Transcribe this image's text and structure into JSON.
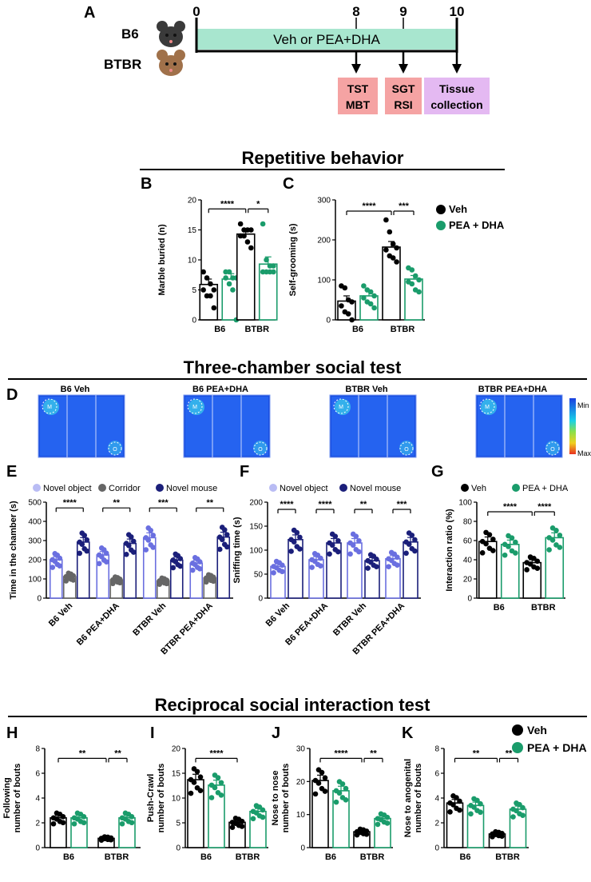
{
  "colors": {
    "veh": "#000000",
    "pea": "#1a9c6b",
    "object": "#6a6fe0",
    "object_light": "#b9bcf4",
    "corridor": "#666666",
    "mouse": "#1b1f7a",
    "timeline": "#a8e6cf",
    "box_red": "#f5a3a3",
    "box_purple": "#e4b9f2"
  },
  "panelA": {
    "letter": "A",
    "groups": [
      "B6",
      "BTBR"
    ],
    "ticks": [
      "0",
      "8",
      "9",
      "10"
    ],
    "bar_label": "Veh or PEA+DHA",
    "boxes": [
      {
        "l1": "TST",
        "l2": "MBT"
      },
      {
        "l1": "SGT",
        "l2": "RSI"
      },
      {
        "l1": "Tissue",
        "l2": "collection"
      }
    ]
  },
  "sections": {
    "repetitive": "Repetitive behavior",
    "three_chamber": "Three-chamber social test",
    "reciprocal": "Reciprocal social interaction test"
  },
  "legend_veh": "Veh",
  "legend_pea": "PEA + DHA",
  "panelD": {
    "letter": "D",
    "titles": [
      "B6 Veh",
      "B6 PEA+DHA",
      "BTBR Veh",
      "BTBR PEA+DHA"
    ],
    "marker_m": "M",
    "marker_o": "O",
    "scale_min": "Min",
    "scale_max": "Max"
  },
  "chart_data": [
    {
      "id": "B",
      "type": "bar",
      "title": "",
      "ylabel": "Marble buried (n)",
      "categories": [
        "B6",
        "BTBR"
      ],
      "ylim": [
        0,
        20
      ],
      "yticks": [
        0,
        5,
        10,
        15,
        20
      ],
      "series": [
        {
          "name": "Veh",
          "values": [
            5.9,
            14.3
          ],
          "sem": [
            0.9,
            0.7
          ]
        },
        {
          "name": "PEA + DHA",
          "values": [
            6.8,
            9.3
          ],
          "sem": [
            0.9,
            1.2
          ]
        }
      ],
      "points": [
        [
          [
            8,
            7,
            6,
            5,
            5,
            4,
            4,
            2
          ],
          [
            16,
            15,
            15,
            15,
            14,
            14,
            13,
            12
          ]
        ],
        [
          [
            8,
            8,
            7,
            7,
            7,
            6,
            5,
            0
          ],
          [
            16,
            10,
            9,
            9,
            8,
            8,
            8,
            8
          ]
        ]
      ],
      "sig": [
        {
          "text": "****",
          "from": [
            0,
            0
          ],
          "to": [
            1,
            0
          ],
          "y": 18
        },
        {
          "text": "*",
          "from": [
            1,
            0
          ],
          "to": [
            1,
            1
          ],
          "y": 18
        }
      ]
    },
    {
      "id": "C",
      "type": "bar",
      "title": "",
      "ylabel": "Self-grooming (s)",
      "categories": [
        "B6",
        "BTBR"
      ],
      "ylim": [
        0,
        300
      ],
      "yticks": [
        0,
        100,
        200,
        300
      ],
      "series": [
        {
          "name": "Veh",
          "values": [
            47,
            182
          ],
          "sem": [
            13,
            14
          ]
        },
        {
          "name": "PEA + DHA",
          "values": [
            60,
            102
          ],
          "sem": [
            10,
            9
          ]
        }
      ],
      "points": [
        [
          [
            85,
            80,
            50,
            45,
            35,
            20,
            15,
            0
          ],
          [
            250,
            220,
            190,
            180,
            175,
            160,
            155,
            145
          ]
        ],
        [
          [
            85,
            75,
            70,
            60,
            55,
            45,
            40,
            30
          ],
          [
            130,
            125,
            110,
            100,
            95,
            90,
            75,
            70
          ]
        ]
      ],
      "sig": [
        {
          "text": "****",
          "from": [
            0,
            0
          ],
          "to": [
            1,
            0
          ],
          "y": 270
        },
        {
          "text": "***",
          "from": [
            1,
            0
          ],
          "to": [
            1,
            1
          ],
          "y": 270
        }
      ]
    },
    {
      "id": "E",
      "type": "bar",
      "ylabel": "Time in the chamber (s)",
      "categories": [
        "B6 Veh",
        "B6 PEA+DHA",
        "BTBR Veh",
        "BTBR PEA+DHA"
      ],
      "ylim": [
        0,
        500
      ],
      "yticks": [
        0,
        100,
        200,
        300,
        400,
        500
      ],
      "legend": [
        "Novel object",
        "Corridor",
        "Novel mouse"
      ],
      "series": [
        {
          "name": "Novel object",
          "values": [
            200,
            225,
            315,
            182
          ]
        },
        {
          "name": "Corridor",
          "values": [
            112,
            95,
            90,
            105
          ]
        },
        {
          "name": "Novel mouse",
          "values": [
            292,
            285,
            198,
            318
          ]
        }
      ],
      "sig": [
        "****",
        "**",
        "***",
        "**"
      ]
    },
    {
      "id": "F",
      "type": "bar",
      "ylabel": "Sniffing time (s)",
      "categories": [
        "B6 Veh",
        "B6 PEA+DHA",
        "BTBR Veh",
        "BTBR PEA+DHA"
      ],
      "ylim": [
        0,
        200
      ],
      "yticks": [
        0,
        50,
        100,
        150,
        200
      ],
      "legend": [
        "Novel object",
        "Novel mouse"
      ],
      "series": [
        {
          "name": "Novel object",
          "values": [
            66,
            80,
            115,
            82
          ]
        },
        {
          "name": "Novel mouse",
          "values": [
            122,
            115,
            78,
            117
          ]
        }
      ],
      "sig": [
        "****",
        "****",
        "**",
        "***"
      ]
    },
    {
      "id": "G",
      "type": "bar",
      "ylabel": "Interaction ratio (%)",
      "categories": [
        "B6",
        "BTBR"
      ],
      "ylim": [
        0,
        100
      ],
      "yticks": [
        0,
        20,
        40,
        60,
        80,
        100
      ],
      "series": [
        {
          "name": "Veh",
          "values": [
            59,
            37
          ]
        },
        {
          "name": "PEA + DHA",
          "values": [
            56,
            63
          ]
        }
      ],
      "sig": [
        {
          "text": "****"
        },
        {
          "text": "****"
        }
      ]
    },
    {
      "id": "H",
      "type": "bar",
      "ylabel": "Following number of bouts",
      "categories": [
        "B6",
        "BTBR"
      ],
      "ylim": [
        0,
        8
      ],
      "yticks": [
        0,
        2,
        4,
        6,
        8
      ],
      "series": [
        {
          "name": "Veh",
          "values": [
            2.4,
            0.75
          ]
        },
        {
          "name": "PEA + DHA",
          "values": [
            2.4,
            2.4
          ]
        }
      ],
      "sig": [
        "**",
        "**"
      ]
    },
    {
      "id": "I",
      "type": "bar",
      "ylabel": "Push-Crawl number of bouts",
      "categories": [
        "B6",
        "BTBR"
      ],
      "ylim": [
        0,
        20
      ],
      "yticks": [
        0,
        5,
        10,
        15,
        20
      ],
      "series": [
        {
          "name": "Veh",
          "values": [
            13.7,
            5.1
          ]
        },
        {
          "name": "PEA + DHA",
          "values": [
            12.6,
            7.3
          ]
        }
      ],
      "sig": [
        "****"
      ]
    },
    {
      "id": "J",
      "type": "bar",
      "ylabel": "Nose to nose number of bouts",
      "categories": [
        "B6",
        "BTBR"
      ],
      "ylim": [
        0,
        30
      ],
      "yticks": [
        0,
        10,
        20,
        30
      ],
      "series": [
        {
          "name": "Veh",
          "values": [
            20.3,
            4.8
          ]
        },
        {
          "name": "PEA + DHA",
          "values": [
            17.2,
            8.8
          ]
        }
      ],
      "sig": [
        "****",
        "**"
      ]
    },
    {
      "id": "K",
      "type": "bar",
      "ylabel": "Nose to anogenital number of bouts",
      "categories": [
        "B6",
        "BTBR"
      ],
      "ylim": [
        0,
        8
      ],
      "yticks": [
        0,
        2,
        4,
        6,
        8
      ],
      "series": [
        {
          "name": "Veh",
          "values": [
            3.6,
            1.1
          ]
        },
        {
          "name": "PEA + DHA",
          "values": [
            3.4,
            3.1
          ]
        }
      ],
      "sig": [
        "**",
        "**"
      ]
    }
  ]
}
